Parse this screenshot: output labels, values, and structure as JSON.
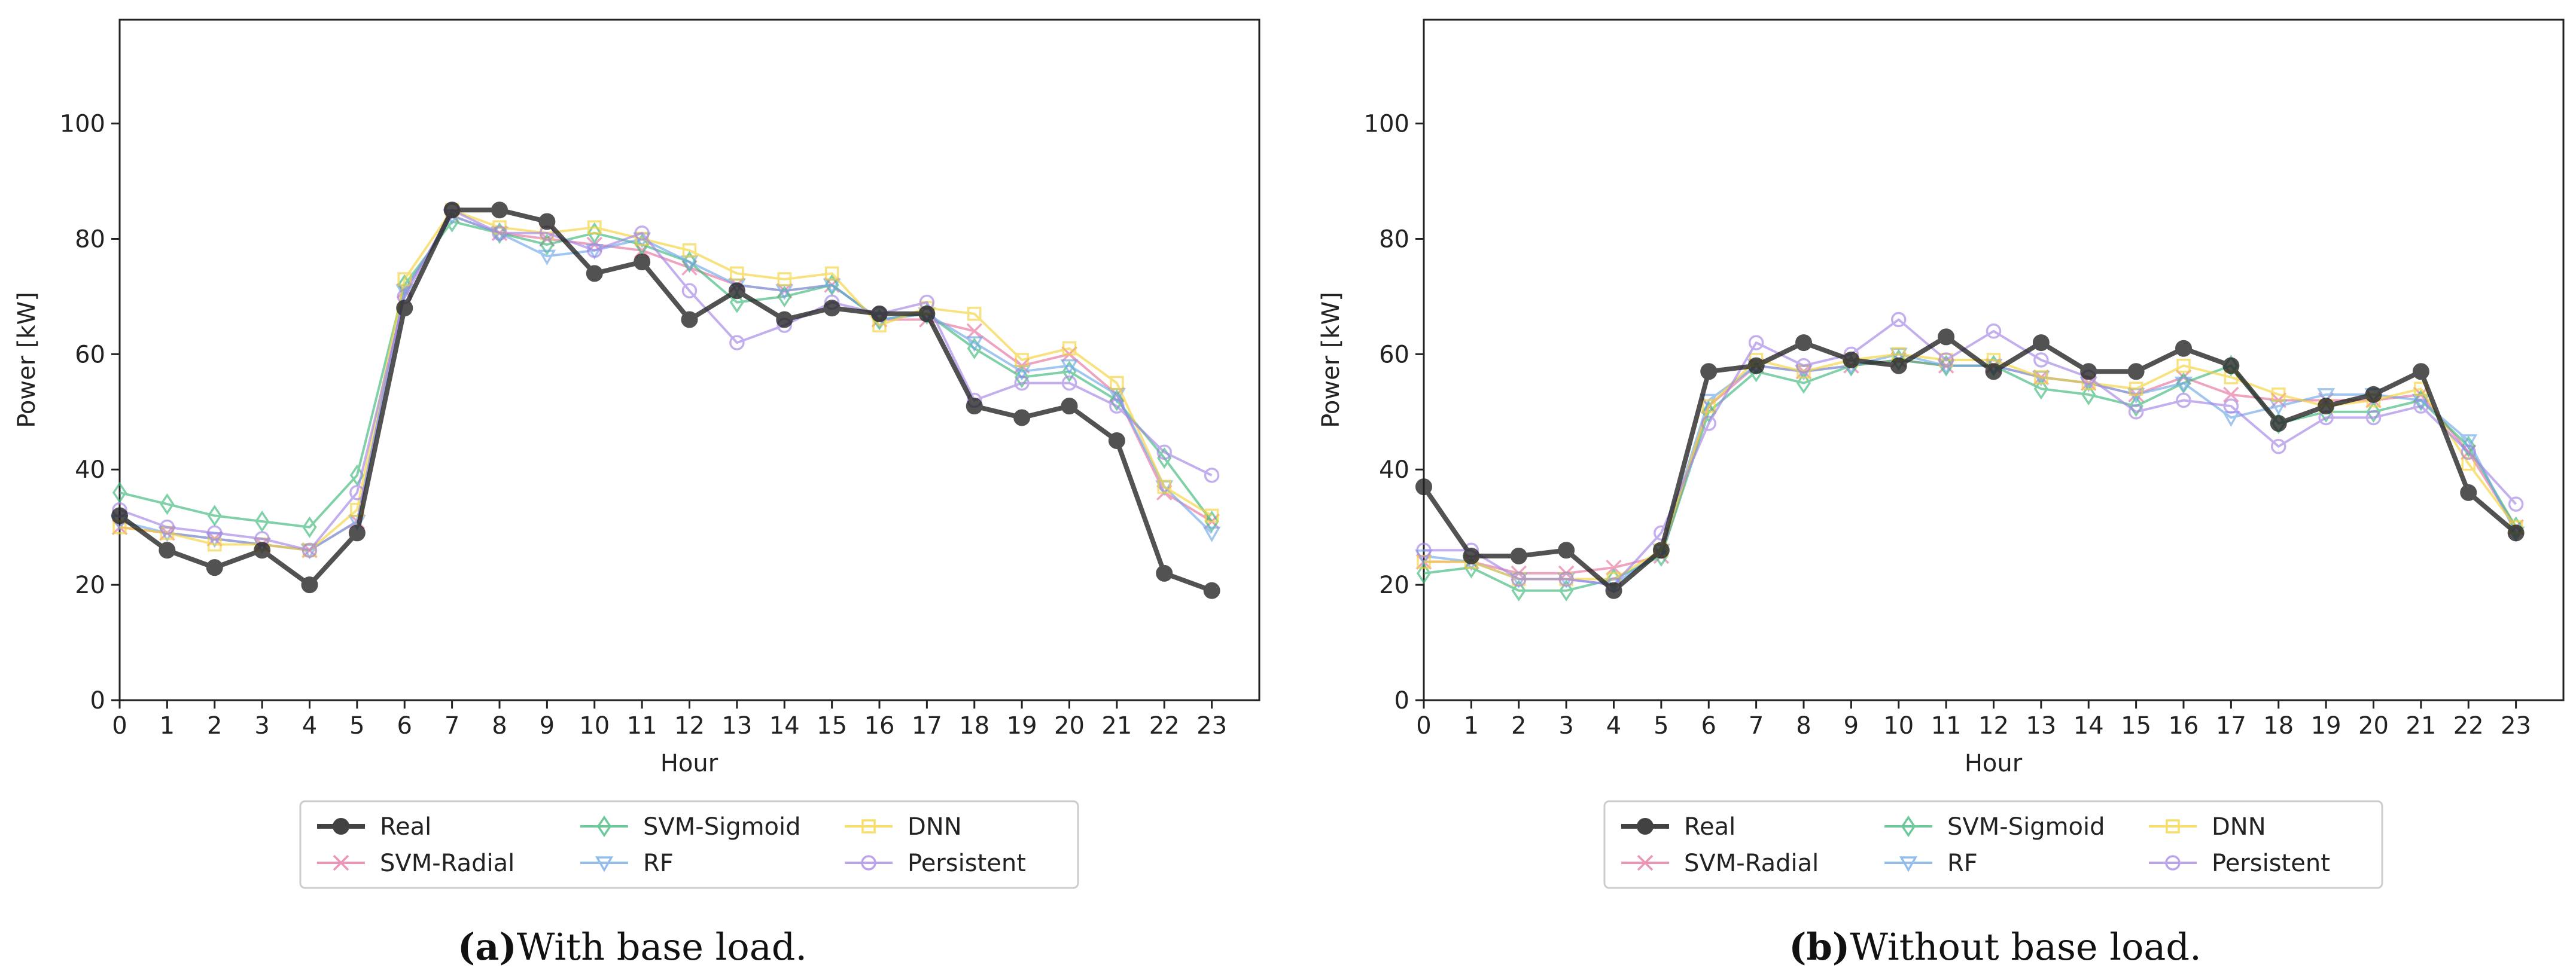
{
  "series_styles": [
    {
      "name": "Real",
      "color": "#222222",
      "marker": "circle-filled"
    },
    {
      "name": "SVM-Radial",
      "color": "#E6739F",
      "marker": "x"
    },
    {
      "name": "SVM-Sigmoid",
      "color": "#3DB87A",
      "marker": "diamond"
    },
    {
      "name": "RF",
      "color": "#6FA8E8",
      "marker": "triangle-down"
    },
    {
      "name": "DNN",
      "color": "#F5D33B",
      "marker": "square"
    },
    {
      "name": "Persistent",
      "color": "#A585E6",
      "marker": "circle-open"
    }
  ],
  "chart_data": [
    {
      "type": "line",
      "caption_label": "(a)",
      "caption_text": "With base load.",
      "xlabel": "Hour",
      "ylabel": "Power [kW]",
      "x": [
        0,
        1,
        2,
        3,
        4,
        5,
        6,
        7,
        8,
        9,
        10,
        11,
        12,
        13,
        14,
        15,
        16,
        17,
        18,
        19,
        20,
        21,
        22,
        23
      ],
      "xlim": [
        0,
        24
      ],
      "ylim": [
        0,
        118
      ],
      "yticks": [
        0,
        20,
        40,
        60,
        80,
        100
      ],
      "legend": "bottom-center",
      "series": [
        {
          "name": "Real",
          "values": [
            32,
            26,
            23,
            26,
            20,
            29,
            68,
            85,
            85,
            83,
            74,
            76,
            66,
            71,
            66,
            68,
            67,
            67,
            51,
            49,
            51,
            45,
            22,
            19
          ]
        },
        {
          "name": "SVM-Radial",
          "values": [
            30,
            29,
            28,
            27,
            26,
            31,
            71,
            84,
            81,
            80,
            79,
            78,
            75,
            72,
            71,
            72,
            66,
            66,
            64,
            58,
            60,
            53,
            36,
            31
          ]
        },
        {
          "name": "SVM-Sigmoid",
          "values": [
            36,
            34,
            32,
            31,
            30,
            39,
            72,
            83,
            81,
            79,
            81,
            79,
            76,
            69,
            70,
            72,
            66,
            67,
            61,
            56,
            57,
            52,
            42,
            31
          ]
        },
        {
          "name": "RF",
          "values": [
            31,
            29,
            28,
            27,
            26,
            31,
            71,
            84,
            81,
            77,
            78,
            80,
            76,
            72,
            71,
            72,
            66,
            67,
            62,
            57,
            58,
            53,
            37,
            29
          ]
        },
        {
          "name": "DNN",
          "values": [
            30,
            29,
            27,
            27,
            26,
            33,
            73,
            85,
            82,
            81,
            82,
            80,
            78,
            74,
            73,
            74,
            65,
            68,
            67,
            59,
            61,
            55,
            37,
            32
          ]
        },
        {
          "name": "Persistent",
          "values": [
            33,
            30,
            29,
            28,
            26,
            36,
            70,
            85,
            81,
            81,
            78,
            81,
            71,
            62,
            65,
            69,
            67,
            69,
            52,
            55,
            55,
            51,
            43,
            39
          ]
        }
      ]
    },
    {
      "type": "line",
      "caption_label": "(b)",
      "caption_text": "Without base load.",
      "xlabel": "Hour",
      "ylabel": "Power [kW]",
      "x": [
        0,
        1,
        2,
        3,
        4,
        5,
        6,
        7,
        8,
        9,
        10,
        11,
        12,
        13,
        14,
        15,
        16,
        17,
        18,
        19,
        20,
        21,
        22,
        23
      ],
      "xlim": [
        0,
        24
      ],
      "ylim": [
        0,
        118
      ],
      "yticks": [
        0,
        20,
        40,
        60,
        80,
        100
      ],
      "legend": "bottom-center",
      "series": [
        {
          "name": "Real",
          "values": [
            37,
            25,
            25,
            26,
            19,
            26,
            57,
            58,
            62,
            59,
            58,
            63,
            57,
            62,
            57,
            57,
            61,
            58,
            48,
            51,
            53,
            57,
            36,
            29
          ]
        },
        {
          "name": "SVM-Radial",
          "values": [
            24,
            24,
            22,
            22,
            23,
            25,
            51,
            58,
            57,
            58,
            59,
            58,
            58,
            56,
            55,
            53,
            56,
            53,
            52,
            52,
            52,
            53,
            43,
            30
          ]
        },
        {
          "name": "SVM-Sigmoid",
          "values": [
            22,
            23,
            19,
            19,
            21,
            25,
            50,
            57,
            55,
            58,
            59,
            58,
            58,
            54,
            53,
            51,
            55,
            58,
            48,
            50,
            50,
            52,
            44,
            30
          ]
        },
        {
          "name": "RF",
          "values": [
            25,
            24,
            21,
            21,
            20,
            26,
            52,
            58,
            57,
            58,
            60,
            58,
            58,
            56,
            55,
            53,
            55,
            49,
            51,
            53,
            53,
            52,
            45,
            29
          ]
        },
        {
          "name": "DNN",
          "values": [
            24,
            24,
            21,
            21,
            21,
            26,
            51,
            59,
            57,
            59,
            60,
            59,
            59,
            56,
            55,
            54,
            58,
            56,
            53,
            51,
            52,
            54,
            41,
            30
          ]
        },
        {
          "name": "Persistent",
          "values": [
            26,
            26,
            21,
            21,
            20,
            29,
            48,
            62,
            58,
            60,
            66,
            59,
            64,
            59,
            56,
            50,
            52,
            51,
            44,
            49,
            49,
            51,
            43,
            34
          ]
        }
      ]
    }
  ]
}
